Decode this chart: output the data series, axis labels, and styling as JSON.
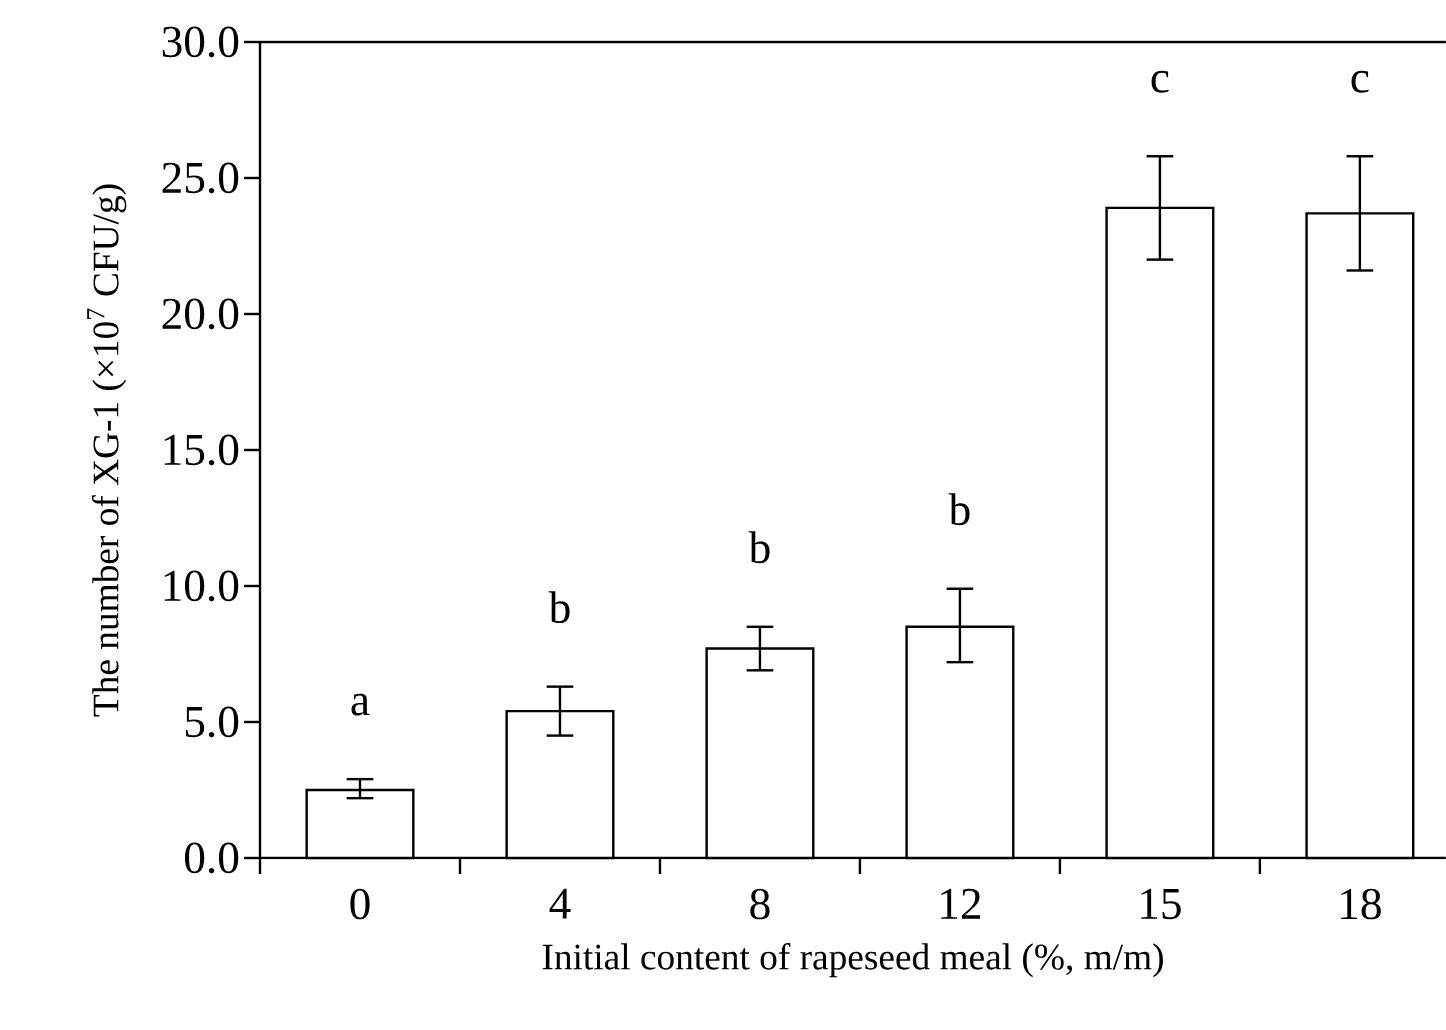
{
  "chart_data": {
    "type": "bar",
    "xlabel": "Initial content of rapeseed meal (%, m/m)",
    "ylabel": "The number of XG-1 (×10$^{7}$ CFU/g)",
    "categories": [
      "0",
      "4",
      "8",
      "12",
      "15",
      "18"
    ],
    "values": [
      2.5,
      5.4,
      7.7,
      8.5,
      23.9,
      23.7
    ],
    "errors": [
      [
        2.2,
        2.9
      ],
      [
        4.5,
        6.3
      ],
      [
        6.9,
        8.5
      ],
      [
        7.2,
        9.9
      ],
      [
        22.0,
        25.8
      ],
      [
        21.6,
        25.8
      ]
    ],
    "color": "#ffffff",
    "ylim": [
      0,
      30
    ],
    "yticks": [
      {
        "value": 0,
        "label": "0.0"
      },
      {
        "value": 5,
        "label": "5.0"
      },
      {
        "value": 10,
        "label": "10.0"
      },
      {
        "value": 15,
        "label": "15.0"
      },
      {
        "value": 20,
        "label": "20.0"
      },
      {
        "value": 25,
        "label": "25.0"
      },
      {
        "value": 30,
        "label": "30.0"
      }
    ],
    "annotations": [
      "a",
      "b",
      "b",
      "b",
      "c",
      "c"
    ]
  }
}
